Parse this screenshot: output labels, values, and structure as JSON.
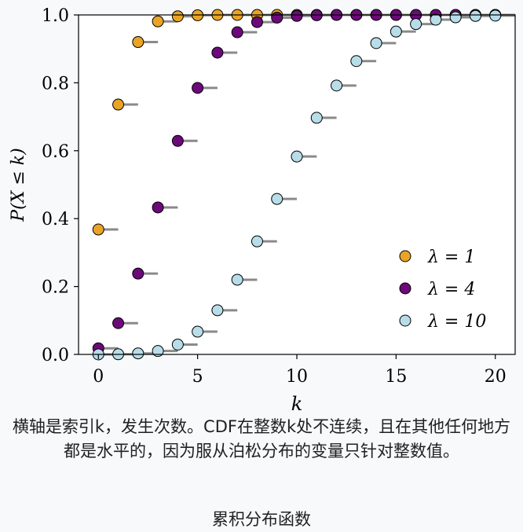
{
  "chart_data": {
    "type": "scatter",
    "title": "",
    "xlabel": "k",
    "ylabel": "P(X ≤ k)",
    "xlim": [
      -1,
      21
    ],
    "ylim": [
      0,
      1.0
    ],
    "xticks": [
      0,
      5,
      10,
      15,
      20
    ],
    "yticks": [
      0.0,
      0.2,
      0.4,
      0.6,
      0.8,
      1.0
    ],
    "xtick_labels": [
      "0",
      "5",
      "10",
      "15",
      "20"
    ],
    "ytick_labels": [
      "0.0",
      "0.2",
      "0.4",
      "0.6",
      "0.8",
      "1.0"
    ],
    "legend_position": "lower-right",
    "x": [
      0,
      1,
      2,
      3,
      4,
      5,
      6,
      7,
      8,
      9,
      10,
      11,
      12,
      13,
      14,
      15,
      16,
      17,
      18,
      19,
      20
    ],
    "series": [
      {
        "name": "λ = 1",
        "color": "#e9a426",
        "values": [
          0.368,
          0.736,
          0.92,
          0.981,
          0.996,
          0.999,
          1.0,
          1.0,
          1.0,
          1.0,
          1.0,
          1.0,
          1.0,
          1.0,
          1.0,
          1.0,
          1.0,
          1.0,
          1.0,
          1.0,
          1.0
        ]
      },
      {
        "name": "λ = 4",
        "color": "#6c0a7a",
        "values": [
          0.018,
          0.092,
          0.238,
          0.433,
          0.629,
          0.785,
          0.889,
          0.949,
          0.979,
          0.992,
          0.997,
          0.999,
          1.0,
          1.0,
          1.0,
          1.0,
          1.0,
          1.0,
          1.0,
          1.0,
          1.0
        ]
      },
      {
        "name": "λ = 10",
        "color": "#b7dde9",
        "values": [
          0.0,
          0.0005,
          0.003,
          0.01,
          0.029,
          0.067,
          0.13,
          0.22,
          0.333,
          0.458,
          0.583,
          0.697,
          0.792,
          0.864,
          0.917,
          0.951,
          0.973,
          0.986,
          0.993,
          0.997,
          0.998
        ]
      }
    ],
    "step_color": "#8a8a8a"
  },
  "caption": {
    "body": "横轴是索引k，发生次数。CDF在整数k处不连续，且在其他任何地方都是水平的，因为服从泊松分布的变量只针对整数值。",
    "title": "累积分布函数"
  }
}
